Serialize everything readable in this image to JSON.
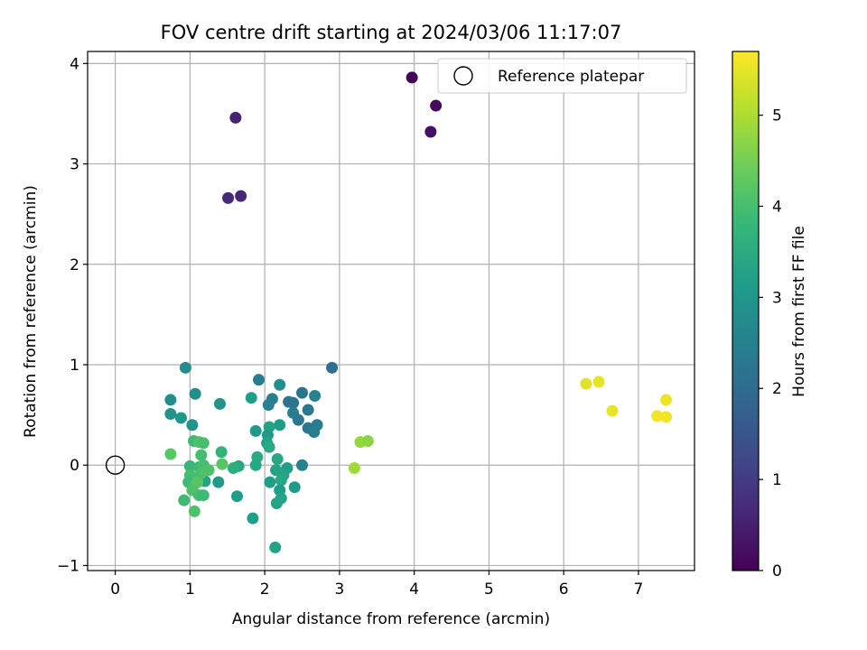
{
  "chart_data": {
    "type": "scatter",
    "title": "FOV centre drift starting at 2024/03/06 11:17:07",
    "xlabel": "Angular distance from reference (arcmin)",
    "ylabel": "Rotation from reference (arcmin)",
    "xlim": [
      -0.37,
      7.75
    ],
    "ylim": [
      -1.05,
      4.12
    ],
    "xticks": [
      0,
      1,
      2,
      3,
      4,
      5,
      6,
      7
    ],
    "yticks": [
      -1,
      0,
      1,
      2,
      3,
      4
    ],
    "grid": true,
    "legend": {
      "placement": "top-right",
      "entries": [
        "Reference platepar"
      ]
    },
    "reference_point": {
      "x": 0,
      "y": 0
    },
    "colorbar": {
      "label": "Hours from first FF file",
      "colormap": "viridis",
      "range": [
        0,
        5.7
      ],
      "ticks": [
        0,
        1,
        2,
        3,
        4,
        5
      ]
    },
    "points": [
      {
        "x": 3.97,
        "y": 3.86,
        "c": 0.05
      },
      {
        "x": 4.29,
        "y": 3.58,
        "c": 0.15
      },
      {
        "x": 4.22,
        "y": 3.32,
        "c": 0.25
      },
      {
        "x": 1.61,
        "y": 3.46,
        "c": 0.55
      },
      {
        "x": 1.51,
        "y": 2.66,
        "c": 0.65
      },
      {
        "x": 1.68,
        "y": 2.68,
        "c": 0.6
      },
      {
        "x": 2.9,
        "y": 0.97,
        "c": 2.1
      },
      {
        "x": 1.92,
        "y": 0.85,
        "c": 2.4
      },
      {
        "x": 2.2,
        "y": 0.8,
        "c": 2.8
      },
      {
        "x": 2.5,
        "y": 0.72,
        "c": 2.2
      },
      {
        "x": 2.67,
        "y": 0.69,
        "c": 2.5
      },
      {
        "x": 2.1,
        "y": 0.66,
        "c": 2.4
      },
      {
        "x": 2.32,
        "y": 0.63,
        "c": 2.3
      },
      {
        "x": 2.38,
        "y": 0.62,
        "c": 2.2
      },
      {
        "x": 2.05,
        "y": 0.6,
        "c": 2.5
      },
      {
        "x": 2.58,
        "y": 0.55,
        "c": 2.3
      },
      {
        "x": 2.38,
        "y": 0.52,
        "c": 2.4
      },
      {
        "x": 2.45,
        "y": 0.45,
        "c": 2.3
      },
      {
        "x": 2.7,
        "y": 0.4,
        "c": 2.4
      },
      {
        "x": 2.58,
        "y": 0.37,
        "c": 2.3
      },
      {
        "x": 2.66,
        "y": 0.33,
        "c": 2.4
      },
      {
        "x": 2.5,
        "y": 0.0,
        "c": 2.5
      },
      {
        "x": 0.94,
        "y": 0.97,
        "c": 2.8
      },
      {
        "x": 1.07,
        "y": 0.71,
        "c": 2.8
      },
      {
        "x": 0.74,
        "y": 0.65,
        "c": 2.8
      },
      {
        "x": 1.4,
        "y": 0.61,
        "c": 2.9
      },
      {
        "x": 1.82,
        "y": 0.67,
        "c": 3.2
      },
      {
        "x": 0.74,
        "y": 0.51,
        "c": 2.9
      },
      {
        "x": 0.88,
        "y": 0.47,
        "c": 3.0
      },
      {
        "x": 1.03,
        "y": 0.4,
        "c": 2.9
      },
      {
        "x": 1.88,
        "y": 0.34,
        "c": 3.1
      },
      {
        "x": 2.06,
        "y": 0.38,
        "c": 3.3
      },
      {
        "x": 2.2,
        "y": 0.4,
        "c": 3.2
      },
      {
        "x": 2.04,
        "y": 0.3,
        "c": 3.1
      },
      {
        "x": 2.03,
        "y": 0.22,
        "c": 3.3
      },
      {
        "x": 2.06,
        "y": 0.18,
        "c": 3.5
      },
      {
        "x": 1.9,
        "y": 0.08,
        "c": 3.5
      },
      {
        "x": 2.17,
        "y": 0.06,
        "c": 3.4
      },
      {
        "x": 1.88,
        "y": 0.0,
        "c": 3.4
      },
      {
        "x": 2.15,
        "y": -0.05,
        "c": 3.3
      },
      {
        "x": 2.3,
        "y": -0.03,
        "c": 3.2
      },
      {
        "x": 2.25,
        "y": -0.1,
        "c": 3.3
      },
      {
        "x": 2.22,
        "y": -0.15,
        "c": 3.4
      },
      {
        "x": 2.07,
        "y": -0.17,
        "c": 3.2
      },
      {
        "x": 2.4,
        "y": -0.22,
        "c": 3.1
      },
      {
        "x": 2.2,
        "y": -0.25,
        "c": 3.2
      },
      {
        "x": 2.22,
        "y": -0.33,
        "c": 3.3
      },
      {
        "x": 2.16,
        "y": -0.38,
        "c": 3.3
      },
      {
        "x": 1.84,
        "y": -0.53,
        "c": 3.2
      },
      {
        "x": 2.14,
        "y": -0.82,
        "c": 3.3
      },
      {
        "x": 1.63,
        "y": -0.31,
        "c": 3.2
      },
      {
        "x": 1.38,
        "y": -0.17,
        "c": 3.1
      },
      {
        "x": 1.2,
        "y": -0.16,
        "c": 3.3
      },
      {
        "x": 1.65,
        "y": -0.01,
        "c": 3.4
      },
      {
        "x": 1.58,
        "y": -0.03,
        "c": 3.6
      },
      {
        "x": 1.42,
        "y": 0.13,
        "c": 3.7
      },
      {
        "x": 1.43,
        "y": 0.01,
        "c": 4.2
      },
      {
        "x": 0.74,
        "y": 0.11,
        "c": 4.2
      },
      {
        "x": 1.05,
        "y": 0.24,
        "c": 3.9
      },
      {
        "x": 1.12,
        "y": 0.23,
        "c": 4.1
      },
      {
        "x": 1.18,
        "y": 0.22,
        "c": 4.0
      },
      {
        "x": 1.15,
        "y": 0.1,
        "c": 4.0
      },
      {
        "x": 1.0,
        "y": -0.01,
        "c": 3.8
      },
      {
        "x": 1.12,
        "y": -0.02,
        "c": 3.9
      },
      {
        "x": 1.18,
        "y": 0.0,
        "c": 4.0
      },
      {
        "x": 1.25,
        "y": -0.05,
        "c": 4.1
      },
      {
        "x": 1.0,
        "y": -0.1,
        "c": 4.0
      },
      {
        "x": 1.15,
        "y": -0.08,
        "c": 4.1
      },
      {
        "x": 1.08,
        "y": -0.13,
        "c": 4.0
      },
      {
        "x": 0.98,
        "y": -0.17,
        "c": 3.9
      },
      {
        "x": 1.05,
        "y": -0.2,
        "c": 4.0
      },
      {
        "x": 1.1,
        "y": -0.17,
        "c": 4.2
      },
      {
        "x": 1.03,
        "y": -0.25,
        "c": 4.1
      },
      {
        "x": 1.12,
        "y": -0.3,
        "c": 4.0
      },
      {
        "x": 1.18,
        "y": -0.3,
        "c": 3.9
      },
      {
        "x": 0.92,
        "y": -0.35,
        "c": 3.9
      },
      {
        "x": 1.06,
        "y": -0.46,
        "c": 4.1
      },
      {
        "x": 3.28,
        "y": 0.23,
        "c": 4.8
      },
      {
        "x": 3.38,
        "y": 0.24,
        "c": 4.7
      },
      {
        "x": 3.2,
        "y": -0.03,
        "c": 4.9
      },
      {
        "x": 6.3,
        "y": 0.81,
        "c": 5.45
      },
      {
        "x": 6.47,
        "y": 0.83,
        "c": 5.5
      },
      {
        "x": 6.65,
        "y": 0.54,
        "c": 5.5
      },
      {
        "x": 7.37,
        "y": 0.65,
        "c": 5.55
      },
      {
        "x": 7.25,
        "y": 0.49,
        "c": 5.6
      },
      {
        "x": 7.37,
        "y": 0.48,
        "c": 5.6
      }
    ]
  }
}
